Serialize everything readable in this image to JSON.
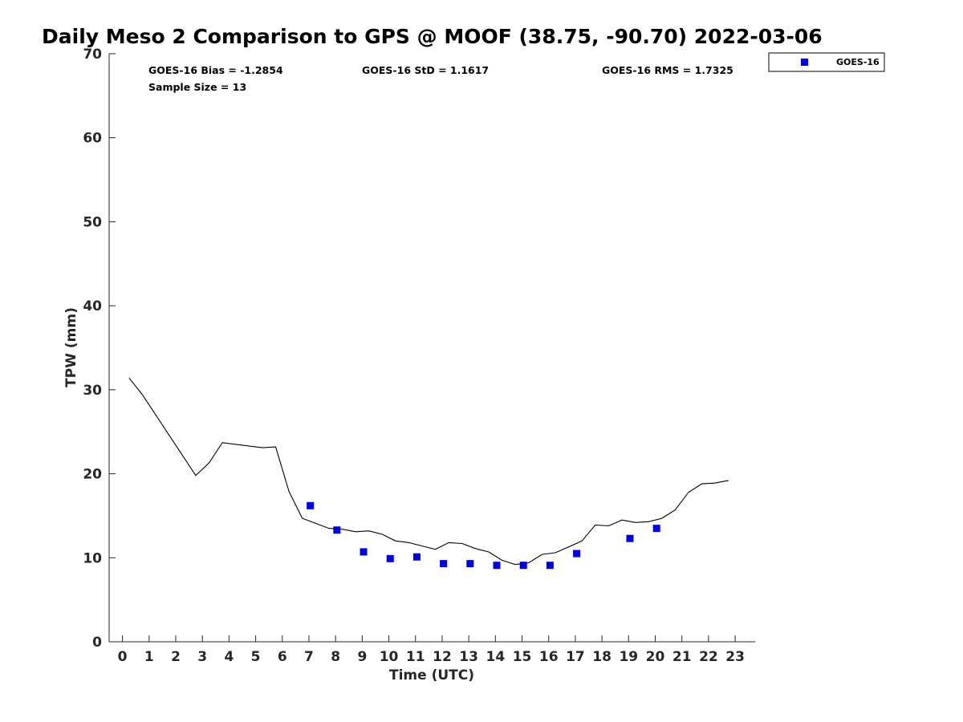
{
  "chart_data": {
    "type": "scatter",
    "title": "Daily Meso 2 Comparison to GPS @ MOOF (38.75, -90.70) 2022-03-06",
    "xlabel": "Time (UTC)",
    "ylabel": "TPW (mm)",
    "xlim": [
      -0.5,
      23.75
    ],
    "ylim": [
      0,
      70
    ],
    "x_ticks": [
      "0",
      "1",
      "2",
      "3",
      "4",
      "5",
      "6",
      "7",
      "8",
      "9",
      "10",
      "11",
      "12",
      "13",
      "14",
      "15",
      "16",
      "17",
      "18",
      "19",
      "20",
      "21",
      "22",
      "23"
    ],
    "y_ticks": [
      "0",
      "10",
      "20",
      "30",
      "40",
      "50",
      "60",
      "70"
    ],
    "grid": false,
    "legend_position": "top-right",
    "annotations": {
      "bias": "GOES-16 Bias = -1.2854",
      "std": "GOES-16 StD = 1.1617",
      "rms": "GOES-16 RMS = 1.7325",
      "sample": "Sample Size = 13"
    },
    "series": [
      {
        "name": "GOES-16",
        "type": "scatter",
        "color": "#0000dd",
        "x": [
          7.05,
          8.05,
          9.05,
          10.05,
          11.05,
          12.05,
          13.05,
          14.05,
          15.05,
          16.05,
          17.05,
          19.05,
          20.05
        ],
        "y": [
          16.2,
          13.3,
          10.7,
          9.9,
          10.1,
          9.3,
          9.3,
          9.1,
          9.1,
          9.1,
          10.5,
          12.3,
          13.5
        ]
      },
      {
        "type": "line",
        "color": "#000000",
        "x": [
          0.25,
          0.75,
          2.75,
          3.25,
          3.75,
          5.25,
          5.75,
          6.25,
          6.75,
          7.75,
          8.25,
          8.75,
          9.25,
          9.75,
          10.25,
          10.75,
          11.25,
          11.75,
          12.25,
          12.75,
          13.25,
          13.75,
          14.25,
          14.75,
          15.25,
          15.75,
          16.25,
          16.75,
          17.25,
          17.75,
          18.25,
          18.75,
          19.25,
          19.75,
          20.25,
          20.75,
          21.25,
          21.75,
          22.25,
          22.75
        ],
        "y": [
          31.4,
          29.4,
          19.8,
          21.3,
          23.7,
          23.1,
          23.2,
          17.9,
          14.7,
          13.5,
          13.4,
          13.1,
          13.2,
          12.8,
          12.0,
          11.8,
          11.4,
          11.0,
          11.8,
          11.7,
          11.1,
          10.7,
          9.7,
          9.2,
          9.4,
          10.4,
          10.6,
          11.3,
          12.0,
          13.9,
          13.8,
          14.5,
          14.2,
          14.3,
          14.7,
          15.7,
          17.8,
          18.8,
          18.9,
          19.2
        ]
      }
    ]
  }
}
